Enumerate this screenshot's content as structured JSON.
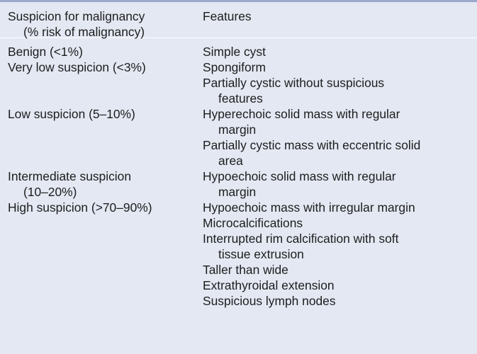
{
  "table": {
    "header": {
      "left_line1": "Suspicion for malignancy",
      "left_line2": "(% risk of malignancy)",
      "right": "Features"
    },
    "rows": [
      {
        "category_line1": "Benign (<1%)",
        "category_line2": "",
        "features": [
          {
            "line1": "Simple cyst",
            "line2": ""
          }
        ]
      },
      {
        "category_line1": "Very low suspicion (<3%)",
        "category_line2": "",
        "features": [
          {
            "line1": "Spongiform",
            "line2": ""
          },
          {
            "line1": "Partially cystic without suspicious",
            "line2": "features"
          }
        ]
      },
      {
        "category_line1": "Low suspicion (5–10%)",
        "category_line2": "",
        "features": [
          {
            "line1": "Hyperechoic solid mass with regular",
            "line2": "margin"
          },
          {
            "line1": "Partially cystic mass with eccentric solid",
            "line2": "area"
          }
        ]
      },
      {
        "category_line1": "Intermediate suspicion",
        "category_line2": "(10–20%)",
        "features": [
          {
            "line1": "Hypoechoic solid mass with regular",
            "line2": "margin"
          }
        ]
      },
      {
        "category_line1": "High suspicion (>70–90%)",
        "category_line2": "",
        "features": [
          {
            "line1": "Hypoechoic mass with irregular margin",
            "line2": ""
          },
          {
            "line1": "Microcalcifications",
            "line2": ""
          },
          {
            "line1": "Interrupted rim calcification with soft",
            "line2": "tissue extrusion"
          },
          {
            "line1": "Taller than wide",
            "line2": ""
          },
          {
            "line1": "Extrathyroidal extension",
            "line2": ""
          },
          {
            "line1": "Suspicious lymph nodes",
            "line2": ""
          }
        ]
      }
    ]
  }
}
